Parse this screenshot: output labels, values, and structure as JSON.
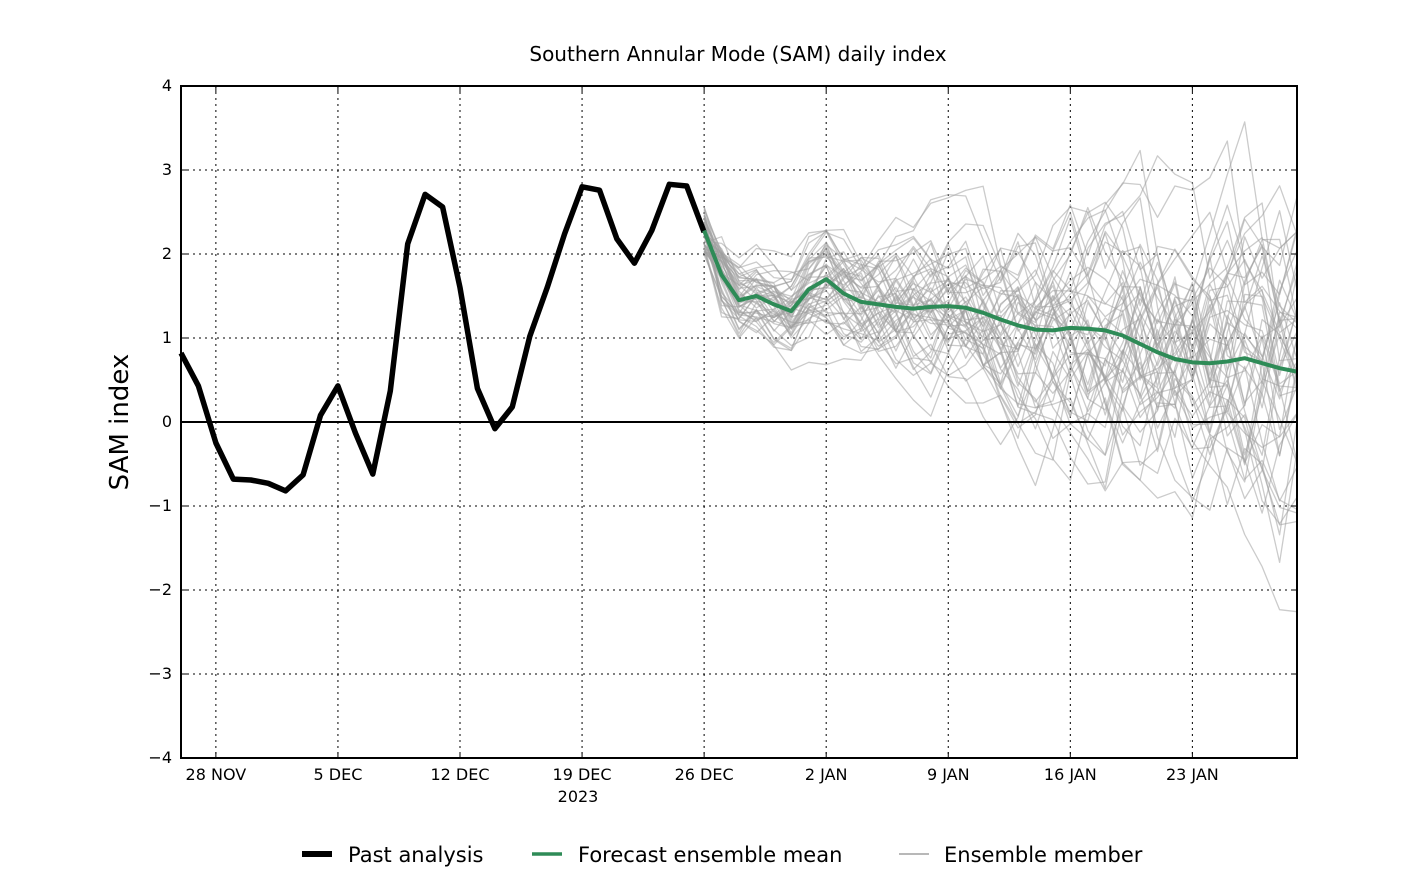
{
  "chart_data": {
    "type": "line",
    "title": "Southern Annular Mode (SAM) daily index",
    "xlabel": "",
    "ylabel": "SAM index",
    "year_label": "2023",
    "ylim": [
      -4,
      4
    ],
    "yticks": [
      4,
      3,
      2,
      1,
      0,
      -1,
      -2,
      -3,
      -4
    ],
    "ytick_labels": [
      "4",
      "3",
      "2",
      "1",
      "0",
      "−1",
      "−2",
      "−3",
      "−4"
    ],
    "xlim_day": [
      0,
      64
    ],
    "xticks": [
      {
        "day": 2,
        "label": "28 NOV"
      },
      {
        "day": 9,
        "label": "5 DEC"
      },
      {
        "day": 16,
        "label": "12 DEC"
      },
      {
        "day": 23,
        "label": "19 DEC"
      },
      {
        "day": 30,
        "label": "26 DEC"
      },
      {
        "day": 37,
        "label": "2 JAN"
      },
      {
        "day": 44,
        "label": "9 JAN"
      },
      {
        "day": 51,
        "label": "16 JAN"
      },
      {
        "day": 58,
        "label": "23 JAN"
      }
    ],
    "x_axis_note": "day 0 = 26 NOV 2023",
    "grid": true,
    "legend_position": "bottom-center",
    "series": [
      {
        "name": "Past analysis",
        "color": "#000000",
        "style": "thick",
        "x": [
          0,
          1,
          2,
          3,
          4,
          5,
          6,
          7,
          8,
          9,
          10,
          11,
          12,
          13,
          14,
          15,
          16,
          17,
          18,
          19,
          20,
          21,
          22,
          23,
          24,
          25,
          26,
          27,
          28,
          29,
          30
        ],
        "values": [
          0.82,
          0.43,
          -0.25,
          -0.68,
          -0.69,
          -0.73,
          -0.82,
          -0.63,
          0.08,
          0.43,
          -0.13,
          -0.62,
          0.37,
          2.12,
          2.71,
          2.56,
          1.6,
          0.4,
          -0.08,
          0.18,
          1.02,
          1.6,
          2.24,
          2.8,
          2.76,
          2.18,
          1.89,
          2.28,
          2.83,
          2.81,
          2.26
        ]
      },
      {
        "name": "Forecast ensemble mean",
        "color": "#2e8b57",
        "style": "medium",
        "x": [
          30,
          31,
          32,
          33,
          34,
          35,
          36,
          37,
          38,
          39,
          40,
          41,
          42,
          43,
          44,
          45,
          46,
          47,
          48,
          49,
          50,
          51,
          52,
          53,
          54,
          55,
          56,
          57,
          58,
          59,
          60,
          61,
          62,
          63,
          64
        ],
        "values": [
          2.28,
          1.75,
          1.45,
          1.5,
          1.4,
          1.32,
          1.58,
          1.7,
          1.53,
          1.43,
          1.4,
          1.37,
          1.35,
          1.37,
          1.38,
          1.36,
          1.3,
          1.22,
          1.15,
          1.1,
          1.09,
          1.12,
          1.11,
          1.09,
          1.03,
          0.93,
          0.83,
          0.75,
          0.71,
          0.7,
          0.72,
          0.76,
          0.7,
          0.64,
          0.6
        ]
      }
    ],
    "ensemble": {
      "name": "Ensemble member",
      "color": "#a0a0a0",
      "member_count": 50,
      "start_day": 30,
      "end_day": 64
    },
    "zero_line": true
  },
  "legend": {
    "items": [
      {
        "label": "Past analysis",
        "color": "#000000",
        "stroke": "thick"
      },
      {
        "label": "Forecast ensemble mean",
        "color": "#2e8b57",
        "stroke": "medium"
      },
      {
        "label": "Ensemble member",
        "color": "#a0a0a0",
        "stroke": "thin"
      }
    ]
  }
}
